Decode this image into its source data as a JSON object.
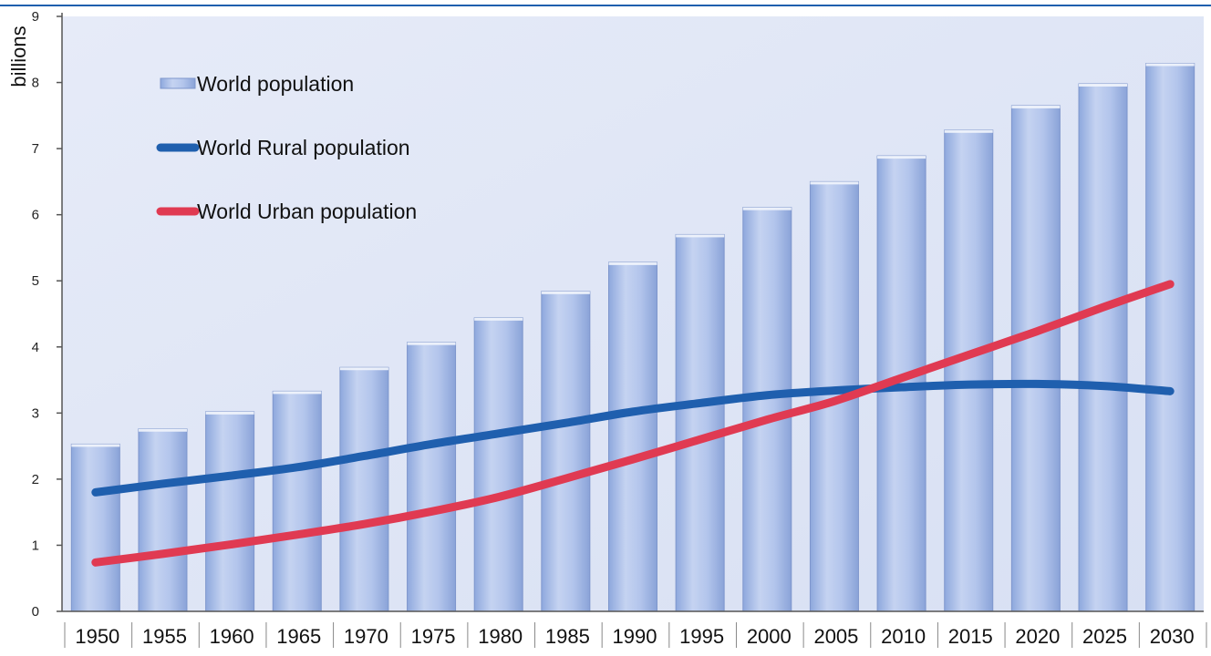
{
  "chart_data": {
    "type": "bar",
    "title": "",
    "xlabel": "",
    "ylabel": "billions",
    "ylim": [
      0,
      9
    ],
    "yticks": [
      0,
      1,
      2,
      3,
      4,
      5,
      6,
      7,
      8,
      9
    ],
    "grid": false,
    "legend_position": "top-left",
    "categories": [
      "1950",
      "1955",
      "1960",
      "1965",
      "1970",
      "1975",
      "1980",
      "1985",
      "1990",
      "1995",
      "2000",
      "2005",
      "2010",
      "2015",
      "2020",
      "2025",
      "2030"
    ],
    "series": [
      {
        "name": "World population",
        "kind": "bar",
        "color": "#a8bde8",
        "values": [
          2.53,
          2.76,
          3.02,
          3.33,
          3.69,
          4.07,
          4.44,
          4.84,
          5.28,
          5.7,
          6.11,
          6.5,
          6.89,
          7.28,
          7.65,
          7.98,
          8.29
        ]
      },
      {
        "name": "World Rural population",
        "kind": "line",
        "color": "#1f5fae",
        "values": [
          1.8,
          1.93,
          2.05,
          2.18,
          2.35,
          2.53,
          2.69,
          2.85,
          3.02,
          3.15,
          3.27,
          3.34,
          3.39,
          3.43,
          3.44,
          3.41,
          3.33
        ]
      },
      {
        "name": "World Urban population",
        "kind": "line",
        "color": "#e03a52",
        "values": [
          0.74,
          0.87,
          1.01,
          1.16,
          1.32,
          1.51,
          1.73,
          2.01,
          2.3,
          2.6,
          2.9,
          3.18,
          3.53,
          3.88,
          4.23,
          4.6,
          4.95
        ]
      }
    ]
  }
}
